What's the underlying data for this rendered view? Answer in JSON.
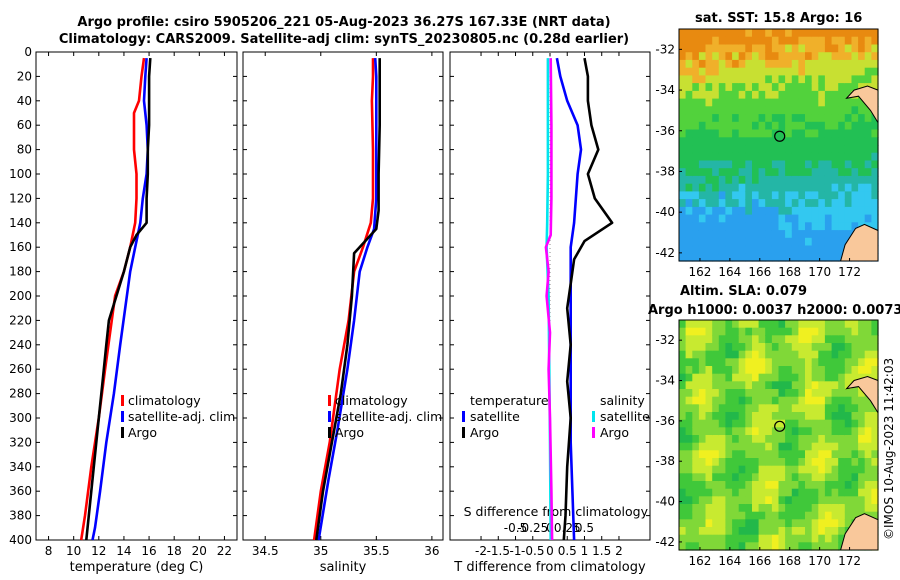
{
  "titles": {
    "line1": "Argo profile: csiro 5905206_221 05-Aug-2023 36.27S 167.33E (NRT data)",
    "line2": "Climatology: CARS2009. Satellite-adj clim: synTS_20230805.nc (0.28d earlier)",
    "sst": "sat. SST: 15.8 Argo: 16",
    "sla1": "Altim. SLA: 0.079",
    "sla2": "Argo h1000: 0.0037 h2000: 0.0073",
    "copyright": "©IMOS 10-Aug-2023 11:42:03"
  },
  "colors": {
    "clim": "#ff0000",
    "sat": "#0000ff",
    "argo": "#000000",
    "sat_s": "#00e5ee",
    "argo_s": "#ff00ff"
  },
  "chart_data": [
    {
      "id": "temperature",
      "type": "line",
      "xlabel": "temperature (deg C)",
      "ylabel": "",
      "xlim": [
        7,
        23
      ],
      "ylim": [
        400,
        0
      ],
      "xticks": [
        8,
        10,
        12,
        14,
        16,
        18,
        20,
        22
      ],
      "yticks": [
        0,
        20,
        40,
        60,
        80,
        100,
        120,
        140,
        160,
        180,
        200,
        220,
        240,
        260,
        280,
        300,
        320,
        340,
        360,
        380,
        400
      ],
      "legend": [
        "climatology",
        "satellite-adj. clim",
        "Argo"
      ],
      "series": [
        {
          "name": "climatology",
          "color": "clim",
          "points": [
            [
              15.6,
              5
            ],
            [
              15.4,
              20
            ],
            [
              15.2,
              40
            ],
            [
              14.8,
              50
            ],
            [
              14.8,
              80
            ],
            [
              15.0,
              100
            ],
            [
              15.0,
              120
            ],
            [
              14.9,
              140
            ],
            [
              14.5,
              160
            ],
            [
              14.0,
              180
            ],
            [
              13.3,
              200
            ],
            [
              12.9,
              230
            ],
            [
              12.5,
              260
            ],
            [
              12.0,
              300
            ],
            [
              11.4,
              340
            ],
            [
              10.9,
              380
            ],
            [
              10.6,
              400
            ]
          ]
        },
        {
          "name": "satellite-adj. clim",
          "color": "sat",
          "points": [
            [
              15.8,
              5
            ],
            [
              15.7,
              20
            ],
            [
              15.6,
              40
            ],
            [
              15.8,
              60
            ],
            [
              15.9,
              80
            ],
            [
              15.8,
              100
            ],
            [
              15.5,
              120
            ],
            [
              15.3,
              140
            ],
            [
              14.9,
              160
            ],
            [
              14.5,
              180
            ],
            [
              14.1,
              210
            ],
            [
              13.7,
              240
            ],
            [
              13.2,
              280
            ],
            [
              12.6,
              320
            ],
            [
              12.1,
              360
            ],
            [
              11.7,
              390
            ],
            [
              11.5,
              400
            ]
          ]
        },
        {
          "name": "Argo",
          "color": "argo",
          "points": [
            [
              16.1,
              5
            ],
            [
              16.0,
              20
            ],
            [
              16.0,
              40
            ],
            [
              16.0,
              60
            ],
            [
              15.9,
              80
            ],
            [
              15.9,
              100
            ],
            [
              15.8,
              120
            ],
            [
              15.8,
              140
            ],
            [
              15.0,
              150
            ],
            [
              14.5,
              160
            ],
            [
              14.0,
              180
            ],
            [
              13.4,
              200
            ],
            [
              12.8,
              220
            ],
            [
              12.6,
              240
            ],
            [
              12.3,
              270
            ],
            [
              12.0,
              300
            ],
            [
              11.6,
              340
            ],
            [
              11.2,
              380
            ],
            [
              11.0,
              400
            ]
          ]
        }
      ]
    },
    {
      "id": "salinity",
      "type": "line",
      "xlabel": "salinity",
      "xlim": [
        34.3,
        36.1
      ],
      "ylim": [
        400,
        0
      ],
      "xticks": [
        34.5,
        35,
        35.5,
        36
      ],
      "legend": [
        "climatology",
        "satellite-adj. clim",
        "Argo"
      ],
      "series": [
        {
          "name": "climatology",
          "color": "clim",
          "points": [
            [
              35.47,
              5
            ],
            [
              35.47,
              20
            ],
            [
              35.46,
              40
            ],
            [
              35.47,
              80
            ],
            [
              35.47,
              120
            ],
            [
              35.45,
              140
            ],
            [
              35.38,
              160
            ],
            [
              35.3,
              180
            ],
            [
              35.25,
              220
            ],
            [
              35.17,
              260
            ],
            [
              35.08,
              320
            ],
            [
              35.0,
              360
            ],
            [
              34.94,
              400
            ]
          ]
        },
        {
          "name": "satellite-adj. clim",
          "color": "sat",
          "points": [
            [
              35.49,
              5
            ],
            [
              35.5,
              20
            ],
            [
              35.5,
              60
            ],
            [
              35.5,
              120
            ],
            [
              35.48,
              145
            ],
            [
              35.42,
              160
            ],
            [
              35.35,
              180
            ],
            [
              35.3,
              220
            ],
            [
              35.24,
              260
            ],
            [
              35.15,
              310
            ],
            [
              35.07,
              350
            ],
            [
              34.98,
              400
            ]
          ]
        },
        {
          "name": "Argo",
          "color": "argo",
          "points": [
            [
              35.53,
              5
            ],
            [
              35.53,
              20
            ],
            [
              35.53,
              60
            ],
            [
              35.52,
              100
            ],
            [
              35.52,
              130
            ],
            [
              35.5,
              145
            ],
            [
              35.4,
              155
            ],
            [
              35.3,
              165
            ],
            [
              35.28,
              200
            ],
            [
              35.24,
              240
            ],
            [
              35.18,
              280
            ],
            [
              35.1,
              320
            ],
            [
              35.02,
              360
            ],
            [
              34.96,
              400
            ]
          ]
        }
      ]
    },
    {
      "id": "difference",
      "type": "line",
      "xlabel": "T difference from climatology",
      "xlabel_top": "S difference from climatology",
      "xlim": [
        -2.9,
        2.9
      ],
      "ylim": [
        400,
        0
      ],
      "xticks": [
        -2,
        -1.5,
        -1,
        -0.5,
        0,
        0.5,
        1,
        1.5,
        2
      ],
      "xticks_top": [
        -0.5,
        -0.25,
        0,
        0.25,
        0.5
      ],
      "xticks_top_labels": [
        "-0.5",
        "-0.25",
        "0",
        "0.25",
        "0.5"
      ],
      "legend_t_title": "temperature",
      "legend_s_title": "salinity",
      "legend_t": [
        "satellite",
        "Argo"
      ],
      "legend_s": [
        "satellite",
        "Argo"
      ],
      "series": [
        {
          "name": "T satellite",
          "color": "sat",
          "points": [
            [
              0.2,
              5
            ],
            [
              0.3,
              20
            ],
            [
              0.5,
              40
            ],
            [
              0.8,
              60
            ],
            [
              0.9,
              80
            ],
            [
              0.8,
              100
            ],
            [
              0.7,
              140
            ],
            [
              0.6,
              160
            ],
            [
              0.6,
              200
            ],
            [
              0.6,
              260
            ],
            [
              0.6,
              320
            ],
            [
              0.65,
              360
            ],
            [
              0.7,
              400
            ]
          ]
        },
        {
          "name": "T Argo",
          "color": "argo",
          "points": [
            [
              1.0,
              5
            ],
            [
              1.1,
              20
            ],
            [
              1.1,
              40
            ],
            [
              1.2,
              60
            ],
            [
              1.4,
              80
            ],
            [
              1.1,
              100
            ],
            [
              1.3,
              120
            ],
            [
              1.8,
              140
            ],
            [
              1.0,
              155
            ],
            [
              0.7,
              170
            ],
            [
              0.6,
              190
            ],
            [
              0.5,
              210
            ],
            [
              0.6,
              240
            ],
            [
              0.5,
              270
            ],
            [
              0.6,
              300
            ],
            [
              0.5,
              340
            ],
            [
              0.45,
              380
            ],
            [
              0.4,
              400
            ]
          ]
        },
        {
          "name": "S satellite",
          "color": "sat_s",
          "points": [
            [
              -0.03,
              5
            ],
            [
              -0.03,
              40
            ],
            [
              -0.03,
              100
            ],
            [
              -0.04,
              140
            ],
            [
              -0.05,
              160
            ],
            [
              -0.02,
              200
            ],
            [
              -0.01,
              260
            ],
            [
              0.0,
              320
            ],
            [
              0.01,
              400
            ]
          ]
        },
        {
          "name": "S Argo",
          "color": "argo_s",
          "points": [
            [
              0.01,
              5
            ],
            [
              0.02,
              60
            ],
            [
              0.02,
              120
            ],
            [
              0.01,
              150
            ],
            [
              -0.06,
              160
            ],
            [
              -0.02,
              180
            ],
            [
              -0.05,
              200
            ],
            [
              0.0,
              230
            ],
            [
              -0.02,
              260
            ],
            [
              0.0,
              300
            ],
            [
              0.02,
              360
            ],
            [
              0.03,
              400
            ]
          ]
        }
      ]
    }
  ],
  "maps": {
    "sst_yticks": [
      "-32",
      "-34",
      "-36",
      "-38",
      "-40",
      "-42"
    ],
    "sla_yticks": [
      "-32",
      "-34",
      "-36",
      "-38",
      "-40",
      "-42"
    ],
    "xticks": [
      "162",
      "164",
      "166",
      "168",
      "170",
      "172"
    ],
    "sst_palette": [
      "#e88a10",
      "#f0b02a",
      "#c8e032",
      "#52d23c",
      "#22c054",
      "#24b6a6",
      "#33c8f0",
      "#2aa0ee"
    ],
    "sla_palette": [
      "#22b84a",
      "#40c83a",
      "#80d838",
      "#c8ea30",
      "#f0f020"
    ],
    "land": "#f9c89b",
    "marker_lon": 167.33,
    "marker_lat": -36.27
  }
}
